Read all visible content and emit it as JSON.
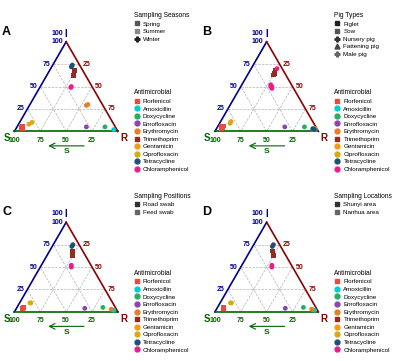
{
  "chart_data": [
    {
      "type": "ternary",
      "title": "A",
      "grid": true,
      "legend": "right",
      "axes": [
        {
          "name": "I",
          "color": "#00008B",
          "lim": [
            0,
            100
          ],
          "ticks": [
            25,
            50,
            75,
            100
          ],
          "end_label": "100"
        },
        {
          "name": "S",
          "color": "#006400",
          "lim": [
            0,
            100
          ],
          "ticks": [
            25,
            50,
            75,
            100
          ],
          "title": "S"
        },
        {
          "name": "R",
          "color": "#8B0000",
          "lim": [
            0,
            100
          ],
          "ticks": [
            25,
            50,
            75
          ]
        }
      ],
      "groups": {
        "title": "Sampling Seasons",
        "items": [
          {
            "name": "Spring",
            "marker": "square",
            "color": "#555555"
          },
          {
            "name": "Summer",
            "marker": "square",
            "color": "#888888"
          },
          {
            "name": "Winter",
            "marker": "plus",
            "color": "#222222"
          }
        ]
      },
      "legend_title": "Antimicrobial",
      "series": [
        {
          "name": "Florfenicol",
          "color": "#e74c3c",
          "marker": "square",
          "values": [
            [
              5,
              90,
              5
            ],
            [
              4,
              91,
              5
            ],
            [
              3,
              91,
              6
            ]
          ]
        },
        {
          "name": "Amoxicillin",
          "color": "#00ced1",
          "marker": "circle",
          "values": [
            [
              2,
              3,
              95
            ]
          ]
        },
        {
          "name": "Doxycycline",
          "color": "#27ae60",
          "marker": "circle",
          "values": [
            [
              5,
              10,
              85
            ]
          ]
        },
        {
          "name": "Enrofloxacin",
          "color": "#8e44ad",
          "marker": "circle",
          "values": [
            [
              5,
              28,
              67
            ]
          ]
        },
        {
          "name": "Erythromycin",
          "color": "#e67e22",
          "marker": "circle",
          "values": [
            [
              30,
              14,
              56
            ],
            [
              29,
              16,
              55
            ]
          ]
        },
        {
          "name": "Trimethoprim",
          "color": "#922b21",
          "marker": "square",
          "values": [
            [
              68,
              8,
              24
            ],
            [
              65,
              10,
              25
            ],
            [
              62,
              12,
              26
            ]
          ]
        },
        {
          "name": "Gentamicin",
          "color": "#f39c12",
          "marker": "circle",
          "values": [
            [
              8,
              82,
              10
            ]
          ]
        },
        {
          "name": "Ciprofloxacin",
          "color": "#d4ac0d",
          "marker": "circle",
          "values": [
            [
              10,
              78,
              12
            ]
          ]
        },
        {
          "name": "Tetracycline",
          "color": "#1a5276",
          "marker": "circle",
          "values": [
            [
              74,
              7,
              19
            ],
            [
              72,
              9,
              19
            ]
          ]
        },
        {
          "name": "Chloramphenicol",
          "color": "#e91e8c",
          "marker": "circle",
          "values": [
            [
              50,
              20,
              30
            ],
            [
              49,
              21,
              30
            ]
          ]
        }
      ]
    },
    {
      "type": "ternary",
      "title": "B",
      "grid": true,
      "legend": "right",
      "axes": [
        {
          "name": "I",
          "color": "#00008B",
          "lim": [
            0,
            100
          ],
          "ticks": [
            25,
            50,
            75,
            100
          ],
          "end_label": "100"
        },
        {
          "name": "S",
          "color": "#006400",
          "lim": [
            0,
            100
          ],
          "ticks": [
            25,
            50,
            75,
            100
          ],
          "title": "S"
        },
        {
          "name": "R",
          "color": "#8B0000",
          "lim": [
            0,
            100
          ],
          "ticks": [
            25,
            50,
            75
          ]
        }
      ],
      "groups": {
        "title": "Pig Types",
        "items": [
          {
            "name": "Piglet",
            "marker": "square",
            "color": "#222222"
          },
          {
            "name": "Sow",
            "marker": "square",
            "color": "#555555"
          },
          {
            "name": "Nursery pig",
            "marker": "plus",
            "color": "#333333"
          },
          {
            "name": "Fattening pig",
            "marker": "triangle",
            "color": "#444444"
          },
          {
            "name": "Male pig",
            "marker": "plus",
            "color": "#666666"
          }
        ]
      },
      "legend_title": "Antimicrobial",
      "series": [
        {
          "name": "Florfenicol",
          "color": "#e74c3c",
          "marker": "square",
          "values": [
            [
              5,
              90,
              5
            ],
            [
              4,
              91,
              5
            ],
            [
              6,
              89,
              5
            ],
            [
              3,
              92,
              5
            ],
            [
              5,
              91,
              4
            ]
          ]
        },
        {
          "name": "Amoxicillin",
          "color": "#00ced1",
          "marker": "circle",
          "values": [
            [
              2,
              2,
              96
            ],
            [
              3,
              2,
              95
            ]
          ]
        },
        {
          "name": "Doxycycline",
          "color": "#27ae60",
          "marker": "circle",
          "values": [
            [
              5,
              11,
              84
            ]
          ]
        },
        {
          "name": "Enrofloxacin",
          "color": "#8e44ad",
          "marker": "circle",
          "values": [
            [
              5,
              30,
              65
            ]
          ]
        },
        {
          "name": "Erythromycin",
          "color": "#e67e22",
          "marker": "circle",
          "values": [
            [
              3,
              2,
              95
            ],
            [
              2,
              4,
              94
            ]
          ]
        },
        {
          "name": "Trimethoprim",
          "color": "#922b21",
          "marker": "square",
          "values": [
            [
              65,
              10,
              25
            ],
            [
              68,
              8,
              24
            ],
            [
              63,
              12,
              25
            ]
          ]
        },
        {
          "name": "Gentamicin",
          "color": "#f39c12",
          "marker": "circle",
          "values": [
            [
              11,
              79,
              10
            ]
          ]
        },
        {
          "name": "Ciprofloxacin",
          "color": "#d4ac0d",
          "marker": "circle",
          "values": [
            [
              9,
              81,
              10
            ]
          ]
        },
        {
          "name": "Tetracycline",
          "color": "#1a5276",
          "marker": "circle",
          "values": [
            [
              2,
              3,
              95
            ],
            [
              3,
              4,
              93
            ]
          ]
        },
        {
          "name": "Chloramphenicol",
          "color": "#e91e8c",
          "marker": "circle",
          "values": [
            [
              50,
              21,
              29
            ],
            [
              48,
              21,
              31
            ],
            [
              52,
              20,
              28
            ],
            [
              70,
              5,
              25
            ],
            [
              50,
              20,
              30
            ]
          ]
        }
      ]
    },
    {
      "type": "ternary",
      "title": "C",
      "grid": true,
      "legend": "right",
      "axes": [
        {
          "name": "I",
          "color": "#00008B",
          "lim": [
            0,
            100
          ],
          "ticks": [
            25,
            50,
            75,
            100
          ],
          "end_label": "100"
        },
        {
          "name": "S",
          "color": "#006400",
          "lim": [
            0,
            100
          ],
          "ticks": [
            25,
            50,
            75,
            100
          ],
          "title": "S"
        },
        {
          "name": "R",
          "color": "#8B0000",
          "lim": [
            0,
            100
          ],
          "ticks": [
            25,
            50,
            75
          ]
        }
      ],
      "groups": {
        "title": "Sampling Positions",
        "items": [
          {
            "name": "Road swab",
            "marker": "square",
            "color": "#333333"
          },
          {
            "name": "Feed swab",
            "marker": "square",
            "color": "#666666"
          }
        ]
      },
      "legend_title": "Antimicrobial",
      "series": [
        {
          "name": "Florfenicol",
          "color": "#e74c3c",
          "marker": "square",
          "values": [
            [
              5,
              89,
              6
            ],
            [
              4,
              90,
              6
            ]
          ]
        },
        {
          "name": "Amoxicillin",
          "color": "#00ced1",
          "marker": "circle",
          "values": [
            [
              2,
              3,
              95
            ]
          ]
        },
        {
          "name": "Doxycycline",
          "color": "#27ae60",
          "marker": "circle",
          "values": [
            [
              5,
              12,
              83
            ]
          ]
        },
        {
          "name": "Enrofloxacin",
          "color": "#8e44ad",
          "marker": "circle",
          "values": [
            [
              4,
              30,
              66
            ]
          ]
        },
        {
          "name": "Erythromycin",
          "color": "#e67e22",
          "marker": "circle",
          "values": [
            [
              3,
              5,
              92
            ]
          ]
        },
        {
          "name": "Trimethoprim",
          "color": "#922b21",
          "marker": "square",
          "values": [
            [
              63,
              12,
              25
            ],
            [
              68,
              10,
              22
            ]
          ]
        },
        {
          "name": "Gentamicin",
          "color": "#f39c12",
          "marker": "circle",
          "values": [
            [
              10,
              80,
              10
            ]
          ]
        },
        {
          "name": "Ciprofloxacin",
          "color": "#d4ac0d",
          "marker": "circle",
          "values": [
            [
              10,
              79,
              11
            ]
          ]
        },
        {
          "name": "Tetracycline",
          "color": "#1a5276",
          "marker": "circle",
          "values": [
            [
              73,
              8,
              19
            ],
            [
              75,
              6,
              19
            ]
          ]
        },
        {
          "name": "Chloramphenicol",
          "color": "#e91e8c",
          "marker": "circle",
          "values": [
            [
              50,
              20,
              30
            ],
            [
              52,
              19,
              29
            ]
          ]
        }
      ]
    },
    {
      "type": "ternary",
      "title": "D",
      "grid": true,
      "legend": "right",
      "axes": [
        {
          "name": "I",
          "color": "#00008B",
          "lim": [
            0,
            100
          ],
          "ticks": [
            25,
            50,
            75,
            100
          ],
          "end_label": "100"
        },
        {
          "name": "S",
          "color": "#006400",
          "lim": [
            0,
            100
          ],
          "ticks": [
            25,
            50,
            75,
            100
          ],
          "title": "S"
        },
        {
          "name": "R",
          "color": "#8B0000",
          "lim": [
            0,
            100
          ],
          "ticks": [
            25,
            50,
            75
          ]
        }
      ],
      "groups": {
        "title": "Sampling Locations",
        "items": [
          {
            "name": "Shunyi area",
            "marker": "square",
            "color": "#333333"
          },
          {
            "name": "Nanhua area",
            "marker": "square",
            "color": "#666666"
          }
        ]
      },
      "legend_title": "Antimicrobial",
      "series": [
        {
          "name": "Florfenicol",
          "color": "#e74c3c",
          "marker": "square",
          "values": [
            [
              5,
              89,
              6
            ],
            [
              4,
              90,
              6
            ]
          ]
        },
        {
          "name": "Amoxicillin",
          "color": "#00ced1",
          "marker": "circle",
          "values": [
            [
              2,
              3,
              95
            ]
          ]
        },
        {
          "name": "Doxycycline",
          "color": "#27ae60",
          "marker": "circle",
          "values": [
            [
              5,
              12,
              83
            ]
          ]
        },
        {
          "name": "Enrofloxacin",
          "color": "#8e44ad",
          "marker": "circle",
          "values": [
            [
              4,
              30,
              66
            ]
          ]
        },
        {
          "name": "Erythromycin",
          "color": "#e67e22",
          "marker": "circle",
          "values": [
            [
              3,
              5,
              92
            ]
          ]
        },
        {
          "name": "Trimethoprim",
          "color": "#922b21",
          "marker": "square",
          "values": [
            [
              63,
              12,
              25
            ],
            [
              68,
              10,
              22
            ]
          ]
        },
        {
          "name": "Gentamicin",
          "color": "#f39c12",
          "marker": "circle",
          "values": [
            [
              10,
              80,
              10
            ]
          ]
        },
        {
          "name": "Ciprofloxacin",
          "color": "#d4ac0d",
          "marker": "circle",
          "values": [
            [
              10,
              79,
              11
            ]
          ]
        },
        {
          "name": "Tetracycline",
          "color": "#1a5276",
          "marker": "circle",
          "values": [
            [
              73,
              8,
              19
            ],
            [
              75,
              6,
              19
            ]
          ]
        },
        {
          "name": "Chloramphenicol",
          "color": "#e91e8c",
          "marker": "circle",
          "values": [
            [
              50,
              20,
              30
            ],
            [
              52,
              19,
              29
            ]
          ]
        }
      ]
    }
  ]
}
